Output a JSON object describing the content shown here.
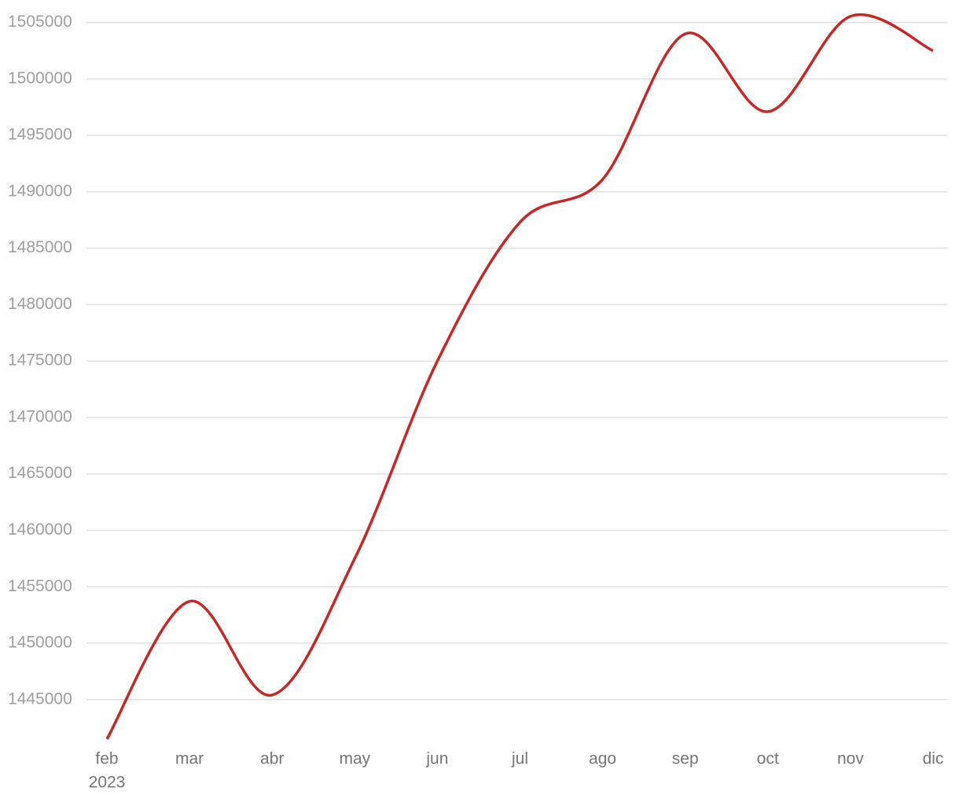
{
  "chart_data": {
    "type": "line",
    "categories": [
      "feb",
      "mar",
      "abr",
      "may",
      "jun",
      "jul",
      "ago",
      "sep",
      "oct",
      "nov",
      "dic"
    ],
    "first_category_year": "2023",
    "series": [
      {
        "color": "#c62828",
        "values": [
          1441500,
          1453700,
          1445400,
          1457500,
          1475000,
          1487300,
          1491100,
          1504000,
          1497100,
          1505550,
          1502500
        ]
      }
    ],
    "ylim": [
      1440800,
      1506300
    ],
    "yticks": [
      1445000,
      1450000,
      1455000,
      1460000,
      1465000,
      1470000,
      1475000,
      1480000,
      1485000,
      1490000,
      1495000,
      1500000,
      1505000
    ],
    "grid": true,
    "smooth": true
  }
}
